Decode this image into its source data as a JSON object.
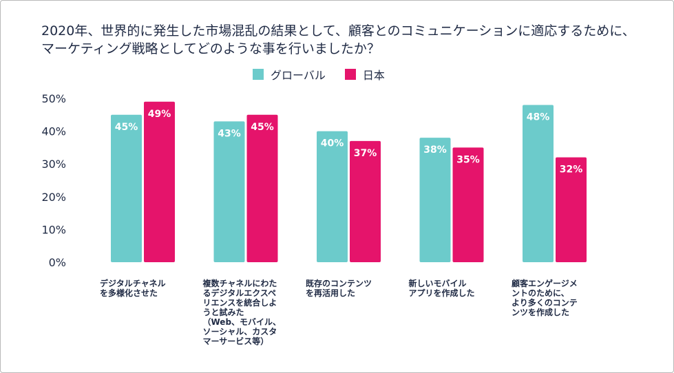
{
  "chart_data": {
    "type": "bar",
    "title": "2020年、世界的に発生した市場混乱の結果として、顧客とのコミュニケーションに適応するために、マーケティング戦略としてどのような事を行いましたか？",
    "categories": [
      "デジタルチャネル\nを多様化させた",
      "複数チャネルにわた\nるデジタルエクスペ\nリエンスを統合しよ\nうと試みた\n（Web、モバイル、\nソーシャル、カスタ\nマーサービス等）",
      "既存のコンテンツ\nを再活用した",
      "新しいモバイル\nアプリを作成した",
      "顧客エンゲージメ\nントのために、\nより多くのコンテ\nンツを作成した"
    ],
    "series": [
      {
        "name": "グローバル",
        "values": [
          45,
          43,
          40,
          38,
          48
        ],
        "labels": [
          "45%",
          "43%",
          "40%",
          "38%",
          "48%"
        ],
        "color": "#6ccbcb"
      },
      {
        "name": "日本",
        "values": [
          49,
          45,
          37,
          35,
          32
        ],
        "labels": [
          "49%",
          "45%",
          "37%",
          "35%",
          "32%"
        ],
        "color": "#e5146b"
      }
    ],
    "yticks": [
      "0%",
      "10%",
      "20%",
      "30%",
      "40%",
      "50%"
    ],
    "ylim": [
      0,
      50
    ],
    "grid": false,
    "legend_position": "top"
  }
}
